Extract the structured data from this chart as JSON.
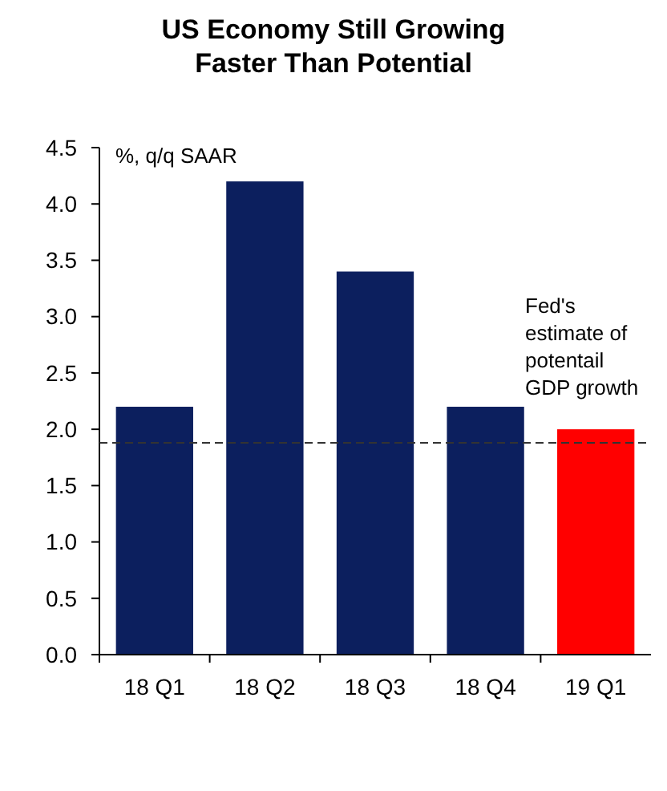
{
  "chart_data": {
    "type": "bar",
    "title": "US Economy Still Growing\nFaster Than Potential",
    "categories": [
      "18 Q1",
      "18 Q2",
      "18 Q3",
      "18 Q4",
      "19 Q1"
    ],
    "values": [
      2.2,
      4.2,
      3.4,
      2.2,
      2.0
    ],
    "colors": [
      "#0c1f5e",
      "#0c1f5e",
      "#0c1f5e",
      "#0c1f5e",
      "#ff0000"
    ],
    "ylim": [
      0,
      4.5
    ],
    "yticks": [
      {
        "value": 0,
        "label": "0.0"
      },
      {
        "value": 0.5,
        "label": "0.5"
      },
      {
        "value": 1,
        "label": "1.0"
      },
      {
        "value": 1.5,
        "label": "1.5"
      },
      {
        "value": 2,
        "label": "2.0"
      },
      {
        "value": 2.5,
        "label": "2.5"
      },
      {
        "value": 3,
        "label": "3.0"
      },
      {
        "value": 3.5,
        "label": "3.5"
      },
      {
        "value": 4,
        "label": "4.0"
      },
      {
        "value": 4.5,
        "label": "4.5"
      }
    ],
    "ref_lines": [
      {
        "axis": "y",
        "value": 1.88,
        "label": "Fed's estimate of potentail GDP growth",
        "color": "#333333",
        "line_style": "dashed"
      }
    ],
    "annotations": [
      "%, q/q SAAR"
    ]
  }
}
